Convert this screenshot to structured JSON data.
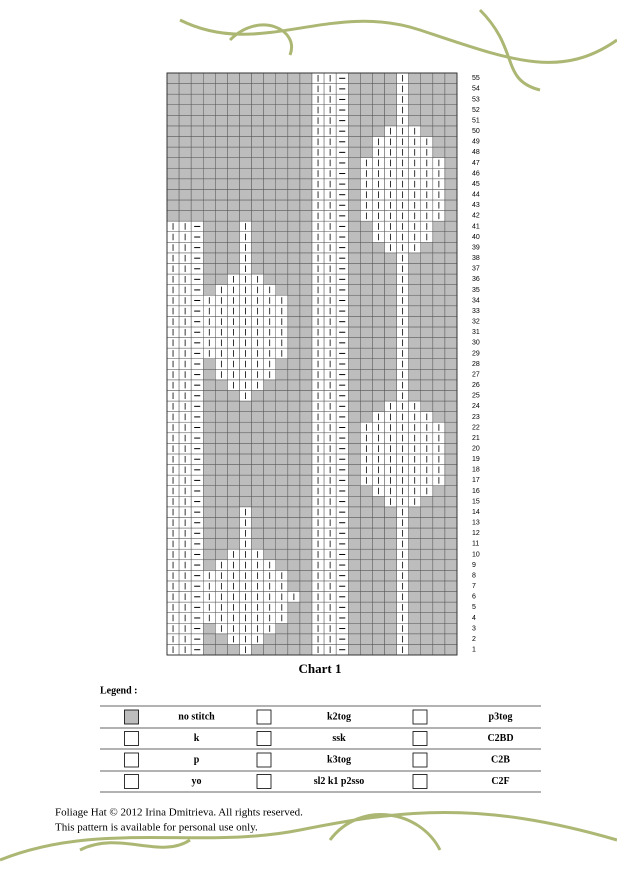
{
  "chart": {
    "title": "Chart 1",
    "row_numbers": [
      1,
      2,
      3,
      4,
      5,
      6,
      7,
      8,
      9,
      10,
      11,
      12,
      13,
      14,
      15,
      16,
      17,
      18,
      19,
      20,
      21,
      22,
      23,
      24,
      25,
      26,
      27,
      28,
      29,
      30,
      31,
      32,
      33,
      34,
      35,
      36,
      37,
      38,
      39,
      40,
      41,
      42,
      43,
      44,
      45,
      46,
      47,
      48,
      49,
      50,
      51,
      52,
      53,
      54,
      55
    ]
  },
  "legend": {
    "label": "Legend :",
    "rows": [
      [
        "no stitch",
        "k2tog",
        "p3tog"
      ],
      [
        "k",
        "ssk",
        "C2BD"
      ],
      [
        "p",
        "k3tog",
        "C2B"
      ],
      [
        "yo",
        "sl2 k1 p2sso",
        "C2F"
      ]
    ]
  },
  "footer": {
    "lines": [
      "Foliage Hat © 2012 Irina Dmitrieva. All rights reserved.",
      "This pattern is available for personal use only."
    ]
  }
}
